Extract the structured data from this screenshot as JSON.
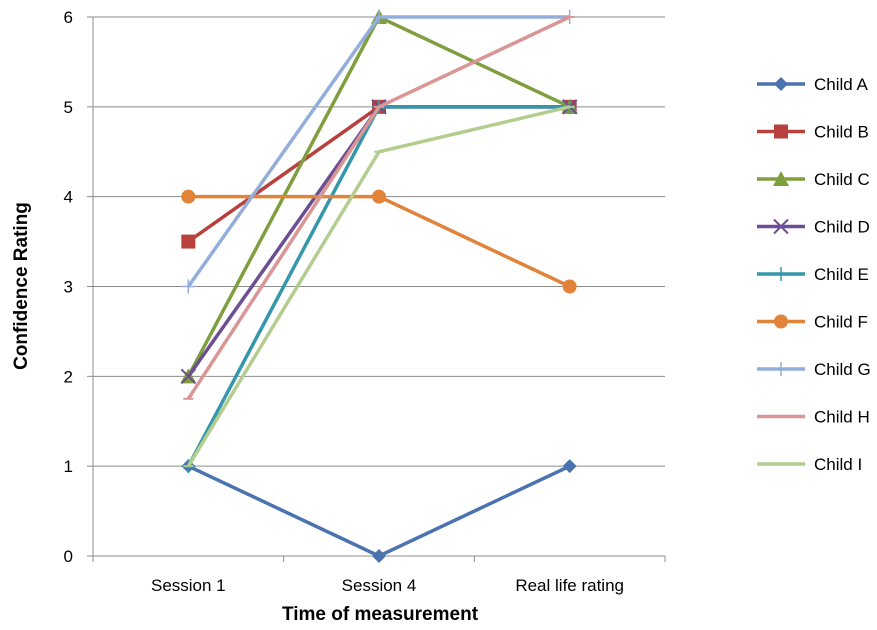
{
  "chart_data": {
    "type": "line",
    "title": "",
    "xlabel": "Time of measurement",
    "ylabel": "Confidence  Rating",
    "categories": [
      "Session 1",
      "Session 4",
      "Real life rating"
    ],
    "ylim": [
      0,
      6
    ],
    "yticks": [
      "0",
      "1",
      "2",
      "3",
      "4",
      "5",
      "6"
    ],
    "grid": true,
    "legend_position": "right",
    "series": [
      {
        "name": "Child A",
        "values": [
          1,
          0,
          1
        ],
        "color": "#4a73b0",
        "marker": "diamond"
      },
      {
        "name": "Child B",
        "values": [
          3.5,
          5,
          5
        ],
        "color": "#b8413d",
        "marker": "square"
      },
      {
        "name": "Child C",
        "values": [
          2,
          6,
          5
        ],
        "color": "#7f9f3f",
        "marker": "triangle"
      },
      {
        "name": "Child D",
        "values": [
          2,
          5,
          5
        ],
        "color": "#6b4f92",
        "marker": "x"
      },
      {
        "name": "Child E",
        "values": [
          1,
          5,
          5
        ],
        "color": "#3497ab",
        "marker": "plus"
      },
      {
        "name": "Child F",
        "values": [
          4,
          4,
          3
        ],
        "color": "#e1843a",
        "marker": "circle"
      },
      {
        "name": "Child G",
        "values": [
          3,
          6,
          6
        ],
        "color": "#93aedb",
        "marker": "plus"
      },
      {
        "name": "Child H",
        "values": [
          1.75,
          5,
          6
        ],
        "color": "#d99694",
        "marker": "dash"
      },
      {
        "name": "Child I",
        "values": [
          1,
          4.5,
          5
        ],
        "color": "#b3cd8f",
        "marker": "dash"
      }
    ]
  }
}
